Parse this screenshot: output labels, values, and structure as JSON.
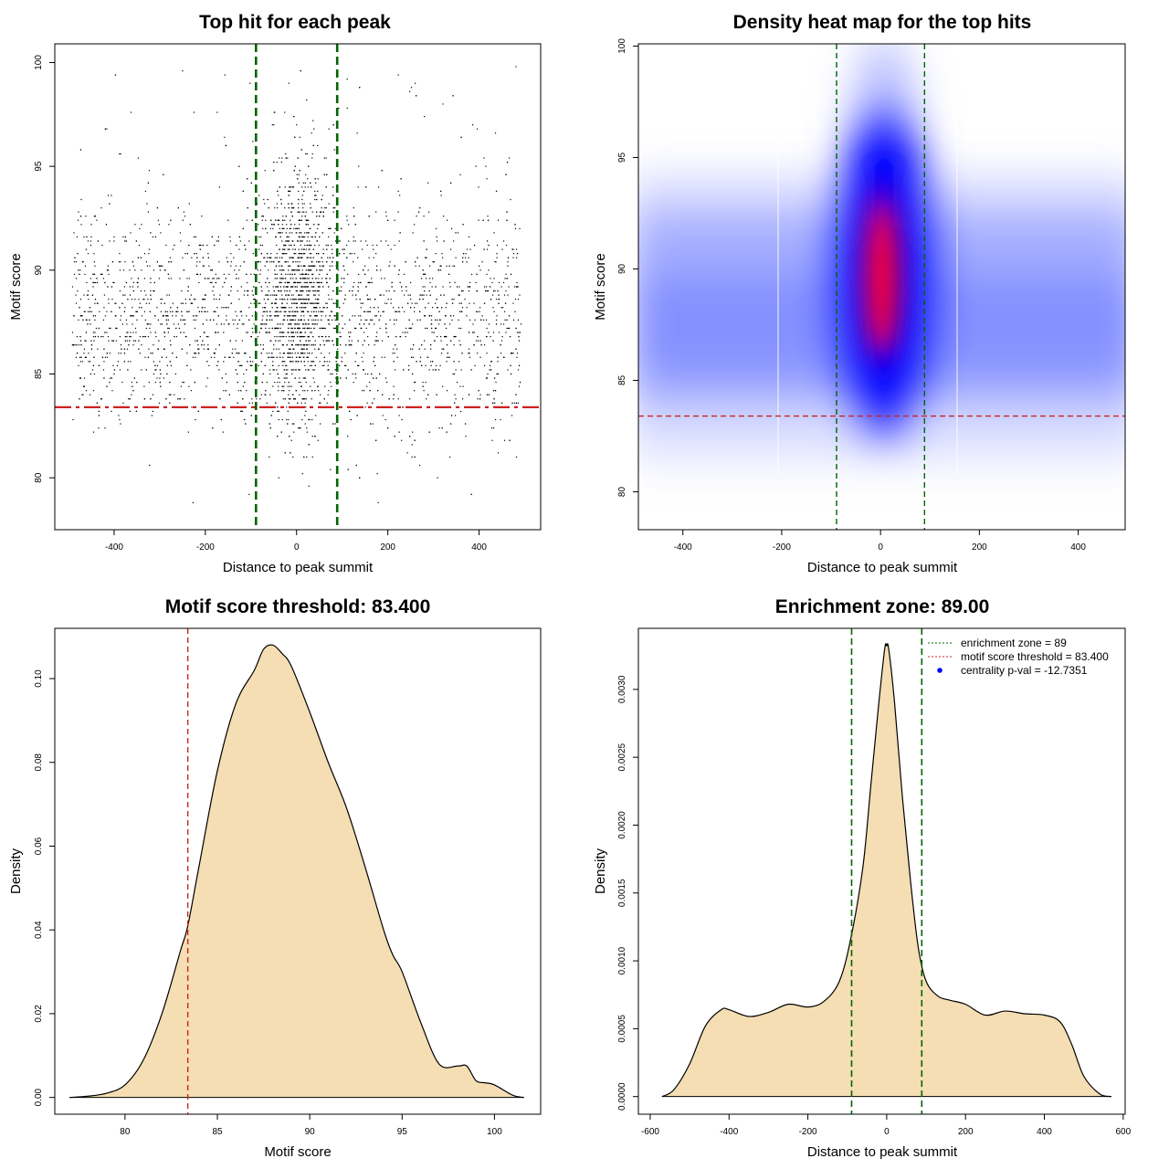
{
  "chart_data": [
    {
      "id": "scatter",
      "type": "scatter",
      "title": "Top hit for each peak",
      "xlabel": "Distance to peak summit",
      "ylabel": "Motif score",
      "xlim": [
        -530,
        535
      ],
      "ylim": [
        77.5,
        100.9
      ],
      "xticks": [
        -400,
        -200,
        0,
        200,
        400
      ],
      "yticks": [
        80,
        85,
        90,
        95,
        100
      ],
      "vlines": [
        -89,
        89
      ],
      "hline": 83.4,
      "point_count": 4200,
      "points_note": "top-hit motif positions, dense near summit (|x|<100), spread -500..500, scores 78.4..100",
      "color_points": "#000000",
      "color_vlines": "#006400",
      "color_hline": "#cc2222"
    },
    {
      "id": "heatmap",
      "type": "heatmap",
      "title": "Density heat map for the top hits",
      "xlabel": "Distance to peak summit",
      "ylabel": "Motif score",
      "xlim": [
        -490,
        495
      ],
      "ylim": [
        78.3,
        100.1
      ],
      "xticks": [
        -400,
        -200,
        0,
        200,
        400
      ],
      "yticks": [
        80,
        85,
        90,
        95,
        100
      ],
      "vlines": [
        -89,
        89
      ],
      "hline": 83.4,
      "peak": {
        "x": 5,
        "y": 89
      },
      "color_scale": [
        "#ffffff",
        "#0000ff",
        "#ff0000"
      ],
      "color_vlines": "#006400",
      "color_hline": "#cc2222"
    },
    {
      "id": "score_density",
      "type": "area",
      "title": "Motif score threshold: 83.400",
      "xlabel": "Motif score",
      "ylabel": "Density",
      "xlim": [
        76.2,
        102.5
      ],
      "ylim": [
        -0.004,
        0.112
      ],
      "xticks": [
        80,
        85,
        90,
        95,
        100
      ],
      "yticks": [
        0.0,
        0.02,
        0.04,
        0.06,
        0.08,
        0.1
      ],
      "ytick_labels": [
        "0.00",
        "0.02",
        "0.04",
        "0.06",
        "0.08",
        "0.10"
      ],
      "vline": 83.4,
      "x": [
        77,
        78,
        79,
        80,
        81,
        82,
        83,
        83.4,
        84,
        85,
        86,
        87,
        87.5,
        88,
        88.5,
        89,
        90,
        91,
        92,
        93,
        94,
        94.5,
        95,
        96,
        97,
        98,
        98.5,
        99,
        99.5,
        100,
        101,
        101.6
      ],
      "y": [
        0.0,
        0.0003,
        0.001,
        0.003,
        0.009,
        0.02,
        0.035,
        0.041,
        0.055,
        0.078,
        0.094,
        0.102,
        0.107,
        0.108,
        0.106,
        0.103,
        0.092,
        0.08,
        0.069,
        0.055,
        0.04,
        0.034,
        0.03,
        0.018,
        0.008,
        0.0075,
        0.0075,
        0.004,
        0.0035,
        0.003,
        0.0005,
        0.0
      ],
      "fill": "#f5deb3",
      "color_vline": "#cc2222"
    },
    {
      "id": "distance_density",
      "type": "area",
      "title": "Enrichment zone: 89.00",
      "xlabel": "Distance to peak summit",
      "ylabel": "Density",
      "xlim": [
        -630,
        605
      ],
      "ylim": [
        -0.00013,
        0.00345
      ],
      "xticks": [
        -600,
        -400,
        -200,
        0,
        200,
        400,
        600
      ],
      "yticks": [
        0.0,
        0.0005,
        0.001,
        0.0015,
        0.002,
        0.0025,
        0.003
      ],
      "ytick_labels": [
        "0.0000",
        "0.0005",
        "0.0010",
        "0.0015",
        "0.0020",
        "0.0025",
        "0.0030"
      ],
      "vlines": [
        -89,
        89
      ],
      "x": [
        -570,
        -540,
        -500,
        -460,
        -420,
        -400,
        -350,
        -300,
        -250,
        -200,
        -160,
        -120,
        -90,
        -60,
        -40,
        -20,
        -5,
        0,
        5,
        20,
        40,
        60,
        80,
        100,
        130,
        160,
        200,
        250,
        300,
        350,
        400,
        440,
        470,
        500,
        540,
        570
      ],
      "y": [
        0.0,
        5e-05,
        0.00024,
        0.00052,
        0.00064,
        0.00064,
        0.00059,
        0.00062,
        0.00068,
        0.00066,
        0.0007,
        0.00085,
        0.00118,
        0.0017,
        0.0023,
        0.0029,
        0.0033,
        0.00332,
        0.0033,
        0.0029,
        0.0022,
        0.0016,
        0.0011,
        0.00085,
        0.00074,
        0.00071,
        0.00068,
        0.0006,
        0.00063,
        0.00061,
        0.0006,
        0.00055,
        0.00038,
        0.00015,
        2e-05,
        0.0
      ],
      "fill": "#f5deb3",
      "color_vlines": "#006400",
      "legend": [
        {
          "label": "enrichment zone = 89",
          "kind": "dotted-line",
          "color": "#006400"
        },
        {
          "label": "motif score threshold = 83.400",
          "kind": "dotted-line",
          "color": "#cc2222"
        },
        {
          "label": "centrality p-val = -12.7351",
          "kind": "point",
          "color": "#0000ff"
        }
      ]
    }
  ]
}
